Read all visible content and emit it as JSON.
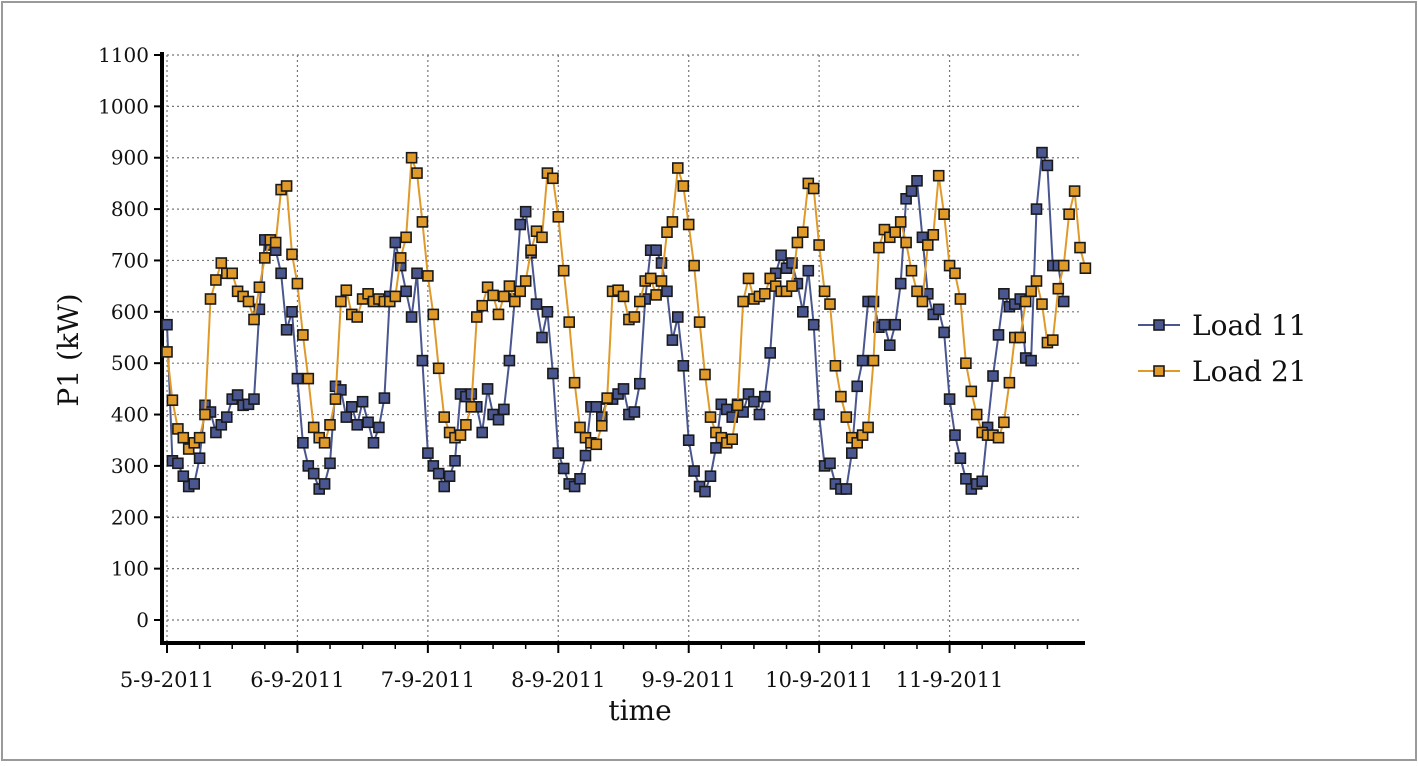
{
  "chart_data": {
    "type": "line",
    "title": "",
    "xlabel": "time",
    "ylabel": "P1 (kW)",
    "ylim": [
      0,
      1100
    ],
    "yticks": [
      0,
      100,
      200,
      300,
      400,
      500,
      600,
      700,
      800,
      900,
      1000,
      1100
    ],
    "xlim": [
      0,
      7
    ],
    "xticks": [
      0,
      1,
      2,
      3,
      4,
      5,
      6
    ],
    "xtick_labels": [
      "5-9-2011",
      "6-9-2011",
      "7-9-2011",
      "8-9-2011",
      "9-9-2011",
      "10-9-2011",
      "11-9-2011"
    ],
    "x_unit": "days since 5-9-2011 00:00 (hourly samples)",
    "grid": true,
    "legend_position": "right",
    "series": [
      {
        "name": "Load 11",
        "color": "#4a5690",
        "marker": "square",
        "values": [
          575,
          310,
          305,
          280,
          260,
          265,
          315,
          418,
          405,
          365,
          380,
          395,
          430,
          438,
          418,
          420,
          430,
          605,
          740,
          730,
          720,
          675,
          565,
          600,
          470,
          345,
          300,
          285,
          255,
          265,
          305,
          455,
          448,
          395,
          415,
          380,
          425,
          385,
          345,
          375,
          432,
          630,
          735,
          690,
          640,
          590,
          675,
          505,
          325,
          300,
          285,
          260,
          280,
          310,
          440,
          435,
          440,
          415,
          365,
          450,
          400,
          390,
          410,
          505,
          625,
          770,
          795,
          715,
          615,
          550,
          600,
          480,
          325,
          295,
          265,
          260,
          275,
          320,
          415,
          415,
          395,
          430,
          430,
          440,
          450,
          400,
          405,
          460,
          625,
          720,
          720,
          695,
          640,
          545,
          590,
          495,
          350,
          290,
          260,
          250,
          280,
          335,
          420,
          410,
          395,
          420,
          405,
          440,
          425,
          400,
          435,
          520,
          675,
          710,
          685,
          695,
          655,
          600,
          680,
          575,
          400,
          300,
          305,
          265,
          255,
          255,
          325,
          455,
          505,
          620,
          620,
          570,
          575,
          535,
          575,
          655,
          820,
          835,
          855,
          745,
          635,
          595,
          605,
          560,
          430,
          360,
          315,
          275,
          255,
          265,
          270,
          375,
          475,
          555,
          635,
          610,
          615,
          625,
          510,
          505,
          800,
          910,
          885,
          690,
          690,
          620
        ]
      },
      {
        "name": "Load 21",
        "color": "#e09a2a",
        "marker": "square",
        "values": [
          522,
          428,
          372,
          355,
          333,
          345,
          355,
          400,
          625,
          662,
          695,
          675,
          675,
          640,
          630,
          620,
          585,
          648,
          705,
          740,
          735,
          838,
          845,
          712,
          655,
          555,
          470,
          375,
          355,
          345,
          380,
          430,
          620,
          642,
          595,
          590,
          625,
          635,
          620,
          625,
          620,
          620,
          630,
          705,
          745,
          900,
          870,
          775,
          670,
          595,
          490,
          395,
          365,
          355,
          360,
          380,
          415,
          590,
          612,
          648,
          632,
          595,
          630,
          650,
          620,
          640,
          660,
          720,
          757,
          745,
          870,
          860,
          785,
          680,
          580,
          462,
          375,
          355,
          345,
          342,
          378,
          432,
          640,
          642,
          630,
          585,
          590,
          620,
          660,
          665,
          633,
          660,
          755,
          775,
          880,
          845,
          770,
          690,
          580,
          478,
          395,
          365,
          355,
          345,
          352,
          418,
          620,
          665,
          625,
          630,
          635,
          665,
          650,
          640,
          640,
          650,
          735,
          755,
          850,
          840,
          730,
          640,
          615,
          495,
          435,
          395,
          355,
          345,
          360,
          375,
          505,
          725,
          760,
          745,
          755,
          775,
          735,
          680,
          640,
          620,
          730,
          750,
          865,
          790,
          690,
          675,
          625,
          500,
          445,
          400,
          365,
          360,
          360,
          355,
          385,
          462,
          550,
          550,
          620,
          640,
          660,
          615,
          540,
          545,
          645,
          690,
          790,
          835,
          725,
          685
        ]
      }
    ]
  }
}
